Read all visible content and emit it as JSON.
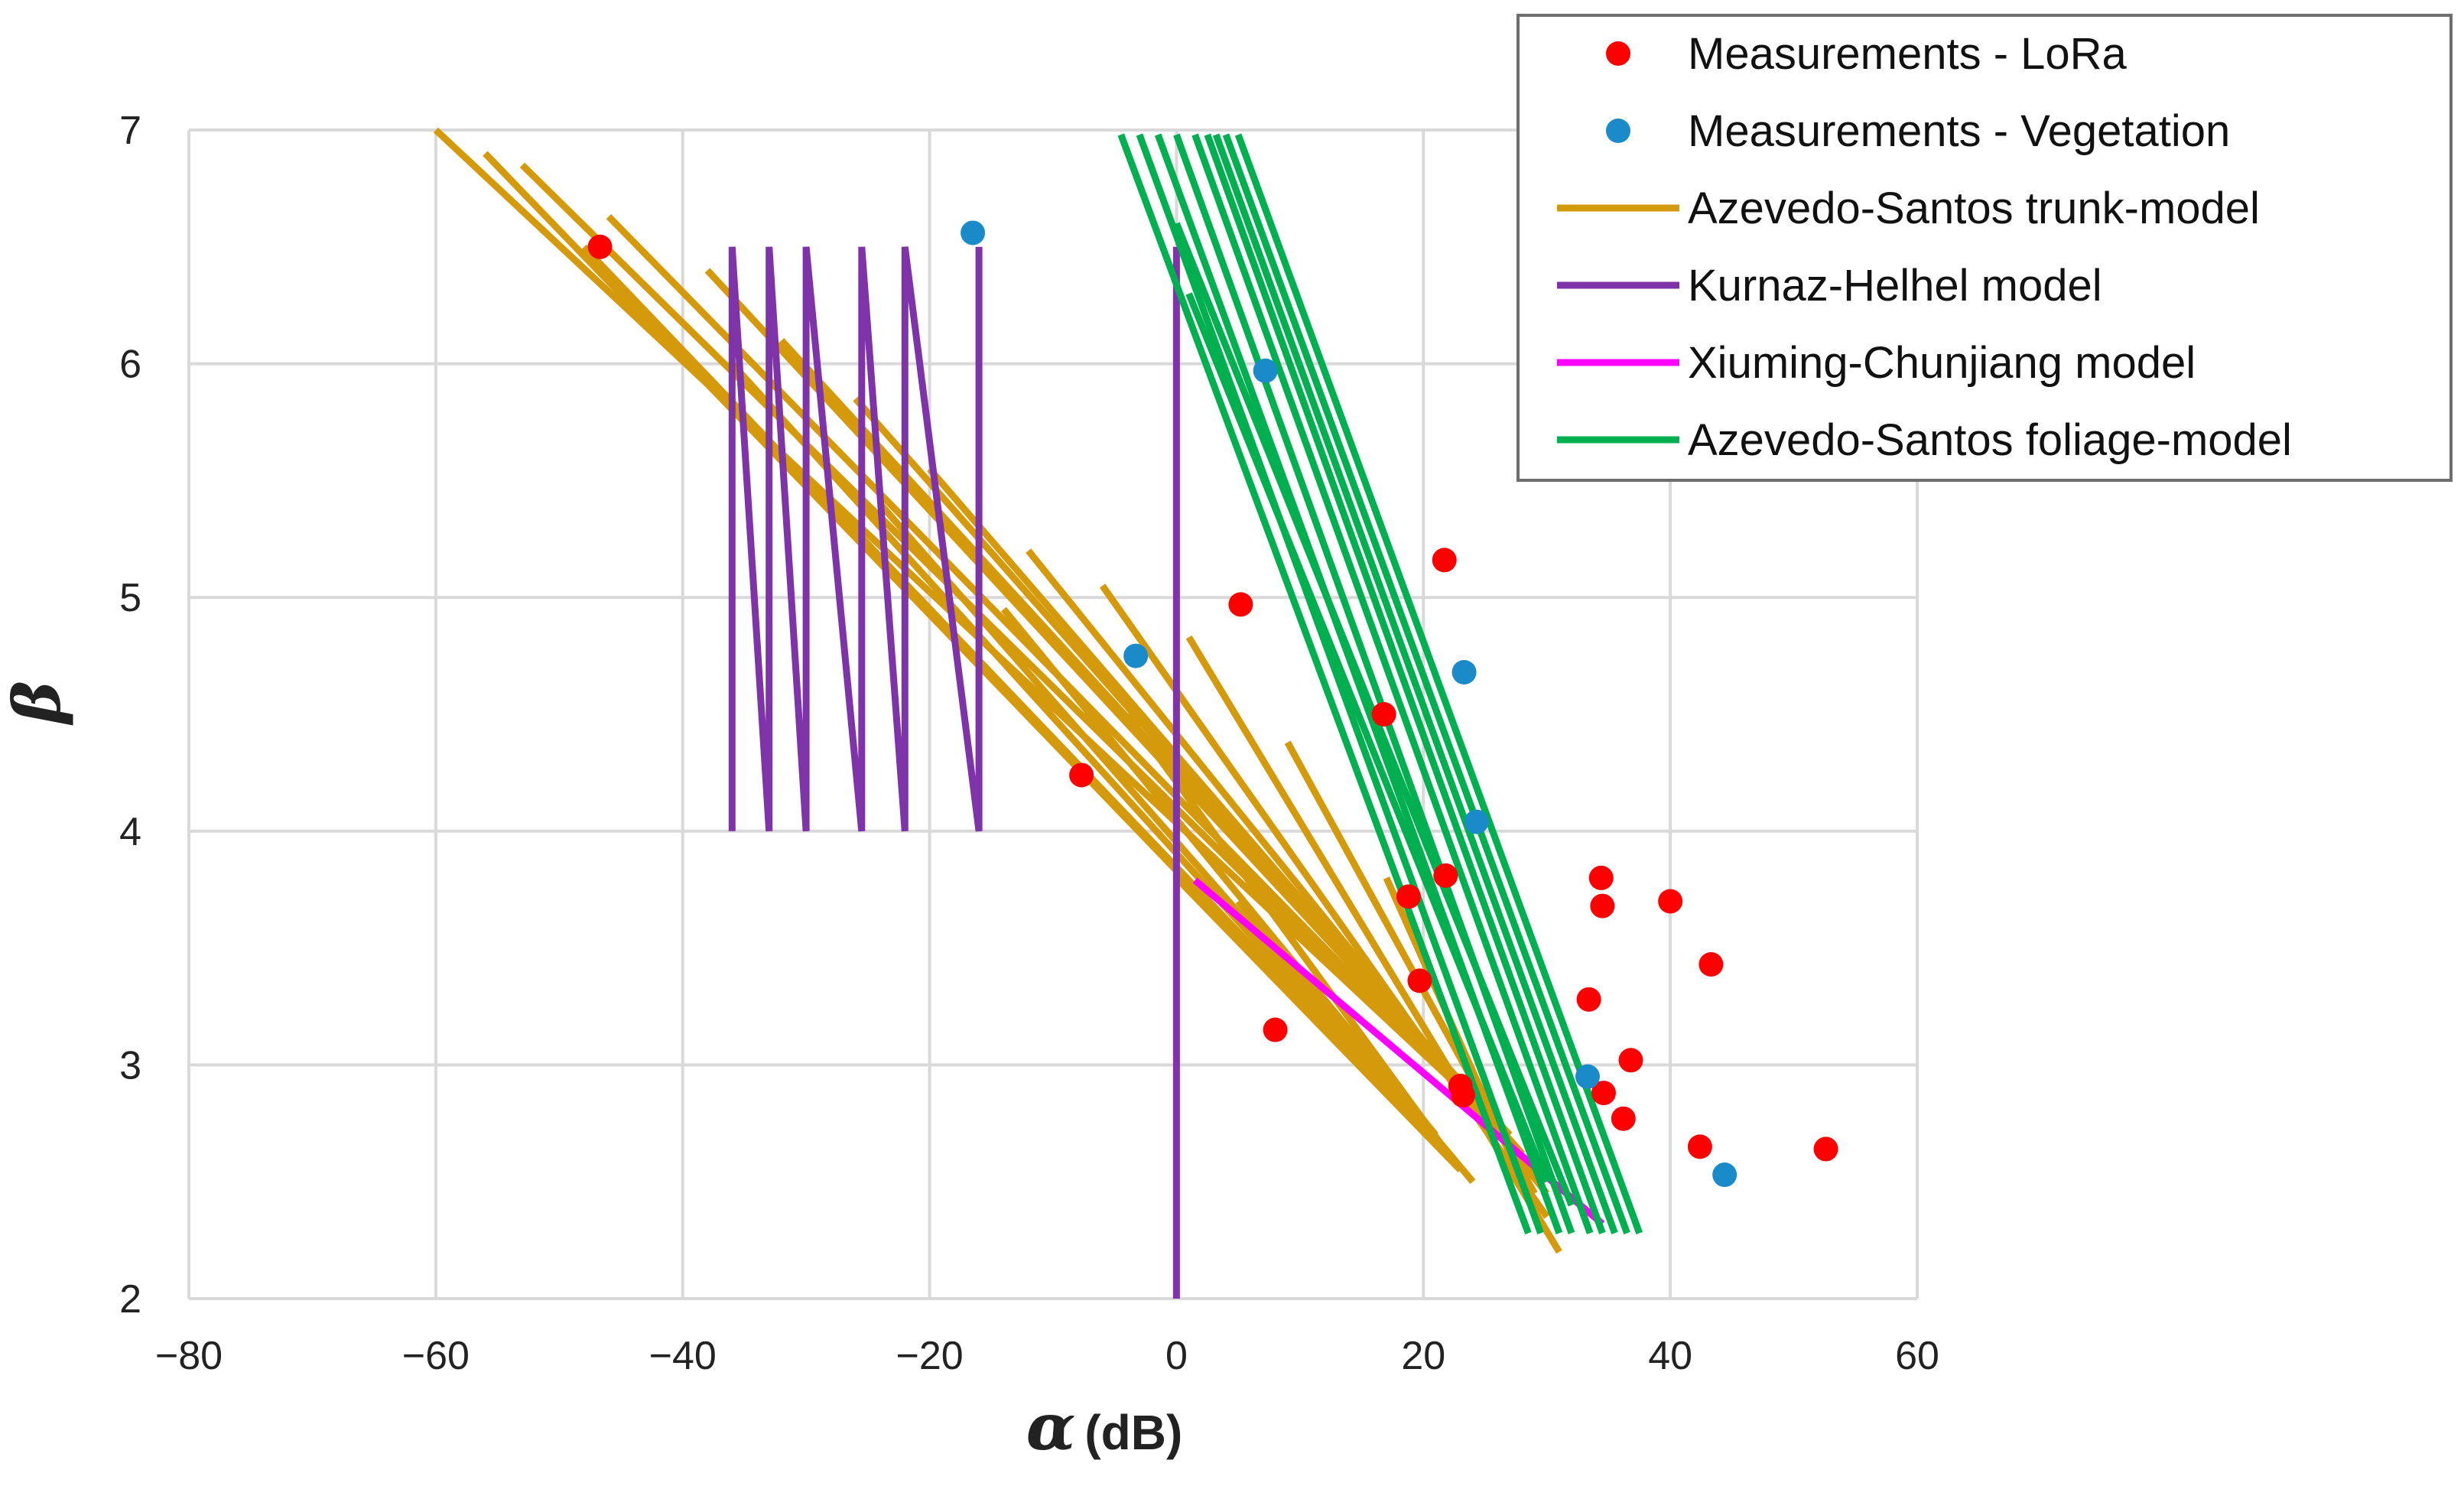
{
  "chart_data": {
    "type": "scatter",
    "title": "",
    "xlabel_symbol": "α",
    "xlabel_unit": "(dB)",
    "ylabel": "β",
    "xlim": [
      -80,
      60
    ],
    "ylim": [
      2,
      7
    ],
    "xticks": [
      "−80",
      "−60",
      "−40",
      "−20",
      "0",
      "20",
      "40",
      "60"
    ],
    "xtick_values": [
      -80,
      -60,
      -40,
      -20,
      0,
      20,
      40,
      60
    ],
    "yticks": [
      "2",
      "3",
      "4",
      "5",
      "6",
      "7"
    ],
    "ytick_values": [
      2,
      3,
      4,
      5,
      6,
      7
    ],
    "grid": true,
    "legend_position": "top-right",
    "legend": [
      {
        "label": "Measurements - LoRa",
        "kind": "marker",
        "color": "#ff0000"
      },
      {
        "label": "Measurements - Vegetation",
        "kind": "marker",
        "color": "#1a8ac9"
      },
      {
        "label": "Azevedo-Santos trunk-model",
        "kind": "line",
        "color": "#d49a0c"
      },
      {
        "label": "Kurnaz-Helhel model",
        "kind": "line",
        "color": "#7f33a8"
      },
      {
        "label": "Xiuming-Chunjiang model",
        "kind": "line",
        "color": "#ff00ff"
      },
      {
        "label": "Azevedo-Santos foliage-model",
        "kind": "line",
        "color": "#00b050"
      }
    ],
    "series": [
      {
        "name": "Azevedo-Santos trunk-model",
        "type": "lines",
        "color": "#d49a0c",
        "segments": [
          [
            [
              -60,
              7.0
            ],
            [
              23,
              2.9
            ]
          ],
          [
            [
              -53,
              6.85
            ],
            [
              24,
              2.85
            ]
          ],
          [
            [
              -46,
              6.63
            ],
            [
              25,
              2.8
            ]
          ],
          [
            [
              -38,
              6.4
            ],
            [
              26,
              2.75
            ]
          ],
          [
            [
              -32,
              6.1
            ],
            [
              27,
              2.7
            ]
          ],
          [
            [
              -26,
              5.85
            ],
            [
              28,
              2.62
            ]
          ],
          [
            [
              -20,
              5.55
            ],
            [
              29,
              2.55
            ]
          ],
          [
            [
              -12,
              5.2
            ],
            [
              30,
              2.45
            ]
          ],
          [
            [
              -6,
              5.05
            ],
            [
              30,
              2.35
            ]
          ],
          [
            [
              1,
              4.83
            ],
            [
              31,
              2.2
            ]
          ],
          [
            [
              9,
              4.38
            ],
            [
              29,
              2.45
            ]
          ],
          [
            [
              17,
              3.8
            ],
            [
              28,
              2.5
            ]
          ],
          [
            [
              -56,
              6.9
            ],
            [
              17,
              2.9
            ]
          ],
          [
            [
              -48,
              6.5
            ],
            [
              18,
              2.85
            ]
          ],
          [
            [
              -36,
              6.0
            ],
            [
              19,
              2.8
            ]
          ],
          [
            [
              -24,
              5.4
            ],
            [
              20,
              2.75
            ]
          ],
          [
            [
              -14,
              4.95
            ],
            [
              21,
              2.7
            ]
          ],
          [
            [
              -4,
              4.5
            ],
            [
              22,
              2.62
            ]
          ],
          [
            [
              0,
              3.8
            ],
            [
              23,
              2.55
            ]
          ],
          [
            [
              5,
              3.7
            ],
            [
              24,
              2.5
            ]
          ]
        ]
      },
      {
        "name": "Kurnaz-Helhel model",
        "type": "lines",
        "color": "#7f33a8",
        "segments": [
          [
            [
              -36,
              4.0
            ],
            [
              -36,
              6.5
            ],
            [
              -33,
              4.0
            ],
            [
              -33,
              6.5
            ],
            [
              -30,
              4.0
            ],
            [
              -30,
              6.5
            ],
            [
              -25.5,
              4.0
            ],
            [
              -25.5,
              6.5
            ],
            [
              -22,
              4.0
            ],
            [
              -22,
              6.5
            ],
            [
              -16,
              4.0
            ],
            [
              -16,
              6.5
            ]
          ],
          [
            [
              0,
              2.0
            ],
            [
              0,
              6.5
            ]
          ]
        ]
      },
      {
        "name": "Xiuming-Chunjiang model",
        "type": "lines",
        "color": "#ff00ff",
        "segments": [
          [
            [
              1.5,
              3.79
            ],
            [
              34.5,
              2.32
            ]
          ]
        ]
      },
      {
        "name": "Azevedo-Santos foliage-model",
        "type": "lines",
        "color": "#00b050",
        "segments": [
          [
            [
              -4.5,
              6.98
            ],
            [
              28.5,
              2.28
            ]
          ],
          [
            [
              -3,
              6.98
            ],
            [
              29.5,
              2.28
            ]
          ],
          [
            [
              -1.5,
              6.98
            ],
            [
              31,
              2.28
            ]
          ],
          [
            [
              0,
              6.98
            ],
            [
              32,
              2.28
            ]
          ],
          [
            [
              1.5,
              6.98
            ],
            [
              33.5,
              2.28
            ]
          ],
          [
            [
              2.5,
              6.98
            ],
            [
              34.5,
              2.28
            ]
          ],
          [
            [
              3.2,
              6.98
            ],
            [
              35.5,
              2.28
            ]
          ],
          [
            [
              4.0,
              6.98
            ],
            [
              36.5,
              2.28
            ]
          ],
          [
            [
              5.0,
              6.98
            ],
            [
              37.5,
              2.28
            ]
          ],
          [
            [
              0,
              6.6
            ],
            [
              32,
              2.4
            ]
          ],
          [
            [
              1,
              6.3
            ],
            [
              30,
              2.5
            ]
          ]
        ]
      },
      {
        "name": "Measurements - LoRa",
        "type": "points",
        "color": "#ff0000",
        "points": [
          [
            -46.7,
            6.5
          ],
          [
            -7.7,
            4.24
          ],
          [
            5.2,
            4.97
          ],
          [
            8.0,
            3.15
          ],
          [
            16.8,
            4.5
          ],
          [
            18.8,
            3.72
          ],
          [
            19.7,
            3.36
          ],
          [
            21.7,
            5.16
          ],
          [
            21.8,
            3.81
          ],
          [
            23.0,
            2.91
          ],
          [
            23.2,
            2.87
          ],
          [
            34.4,
            3.8
          ],
          [
            34.5,
            3.68
          ],
          [
            33.4,
            3.28
          ],
          [
            36.8,
            3.02
          ],
          [
            34.6,
            2.88
          ],
          [
            36.2,
            2.77
          ],
          [
            40.0,
            3.7
          ],
          [
            43.3,
            3.43
          ],
          [
            42.4,
            2.65
          ],
          [
            52.6,
            2.64
          ]
        ]
      },
      {
        "name": "Measurements - Vegetation",
        "type": "points",
        "color": "#1a8ac9",
        "points": [
          [
            -16.5,
            6.56
          ],
          [
            7.2,
            5.97
          ],
          [
            -3.3,
            4.75
          ],
          [
            23.3,
            4.68
          ],
          [
            24.3,
            4.04
          ],
          [
            33.3,
            2.95
          ],
          [
            44.4,
            2.53
          ]
        ]
      }
    ]
  }
}
